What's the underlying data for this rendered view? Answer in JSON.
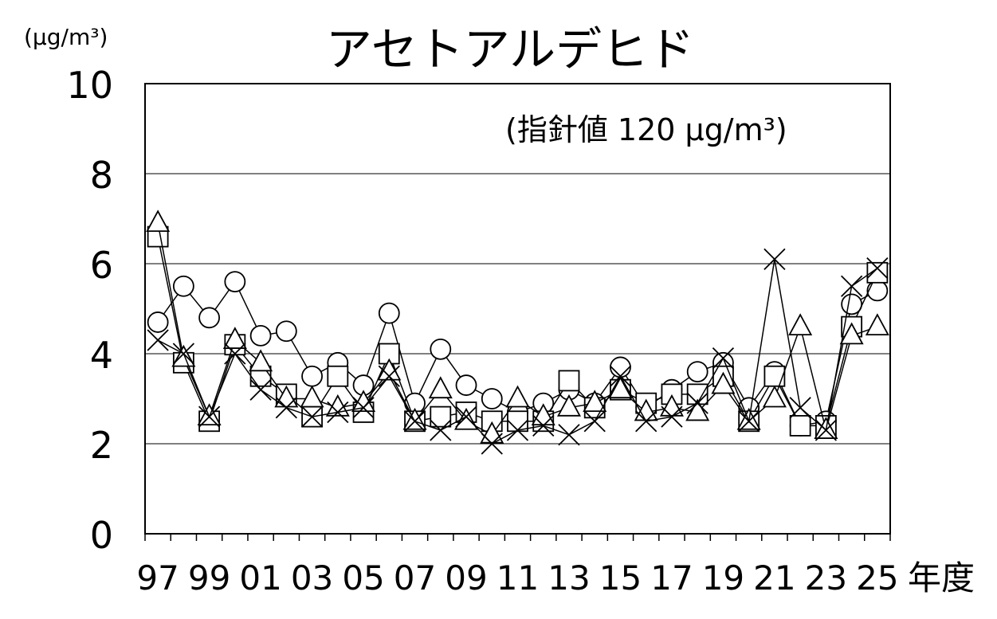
{
  "chart_data": {
    "type": "line",
    "title": "アセトアルデヒド",
    "unit_label": "(μg/m³)",
    "annotation": "(指針値 120 μg/m³)",
    "xlabel": "年度",
    "ylim": [
      0,
      10
    ],
    "yticks": [
      0,
      2,
      4,
      6,
      8,
      10
    ],
    "ytick_labels": [
      "0",
      "2",
      "4",
      "6",
      "8",
      "10"
    ],
    "xtick_labels": [
      "97",
      "99",
      "01",
      "03",
      "05",
      "07",
      "09",
      "11",
      "13",
      "15",
      "17",
      "19",
      "21",
      "23",
      "25"
    ],
    "x": [
      "97",
      "98",
      "99",
      "00",
      "01",
      "02",
      "03",
      "04",
      "05",
      "06",
      "07",
      "08",
      "09",
      "10",
      "11",
      "12",
      "13",
      "14",
      "15",
      "16",
      "17",
      "18",
      "19",
      "20",
      "21",
      "22",
      "23",
      "24",
      "25"
    ],
    "grid": "horizontal",
    "series": [
      {
        "marker": "circle",
        "values": [
          4.7,
          5.5,
          4.8,
          5.6,
          4.4,
          4.5,
          3.5,
          3.8,
          3.3,
          4.9,
          2.9,
          4.1,
          3.3,
          3.0,
          2.7,
          2.9,
          3.2,
          2.9,
          3.7,
          2.8,
          3.2,
          3.6,
          3.8,
          2.8,
          3.6,
          2.4,
          2.5,
          5.1,
          5.4
        ]
      },
      {
        "marker": "square",
        "values": [
          6.6,
          3.8,
          2.5,
          4.2,
          3.5,
          3.1,
          2.6,
          3.5,
          2.7,
          4.0,
          2.5,
          2.6,
          2.7,
          2.5,
          2.5,
          2.5,
          3.4,
          2.8,
          3.2,
          2.9,
          3.1,
          3.1,
          3.5,
          2.5,
          3.5,
          2.4,
          2.4,
          4.6,
          5.8
        ]
      },
      {
        "marker": "triangle",
        "values": [
          6.9,
          3.9,
          2.6,
          4.3,
          3.8,
          3.0,
          3.0,
          2.8,
          2.9,
          3.6,
          2.5,
          3.2,
          2.5,
          2.2,
          3.0,
          2.6,
          2.8,
          2.9,
          3.2,
          2.7,
          2.8,
          2.7,
          3.3,
          2.5,
          3.0,
          4.6,
          2.3,
          4.4,
          4.6
        ]
      },
      {
        "marker": "x",
        "values": [
          4.3,
          4.0,
          2.6,
          4.0,
          3.2,
          2.8,
          2.6,
          2.7,
          2.8,
          3.5,
          2.5,
          2.3,
          2.6,
          2.0,
          2.3,
          2.4,
          2.2,
          2.5,
          3.5,
          2.5,
          2.6,
          2.9,
          3.9,
          2.5,
          6.1,
          2.8,
          2.3,
          5.5,
          5.9
        ]
      }
    ]
  }
}
